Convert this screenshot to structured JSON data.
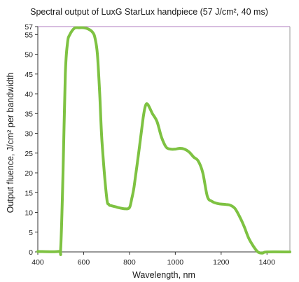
{
  "chart_data": {
    "type": "line",
    "title": "Spectral output of LuxG StarLux handpiece (57 J/cm², 40 ms)",
    "xlabel": "Wavelength, nm",
    "ylabel": "Output fluence, J/cm² per bandwidth",
    "xlim": [
      400,
      1500
    ],
    "ylim": [
      0,
      57
    ],
    "xticks": [
      400,
      600,
      800,
      1000,
      1200,
      1400
    ],
    "yticks": [
      0,
      5,
      10,
      15,
      20,
      25,
      30,
      35,
      40,
      45,
      50,
      55,
      57
    ],
    "grid": false,
    "series": [
      {
        "color": "#7ec242",
        "x": [
          400,
          490,
          500,
          510,
          520,
          530,
          540,
          560,
          580,
          600,
          620,
          640,
          650,
          660,
          670,
          680,
          700,
          710,
          720,
          740,
          760,
          780,
          800,
          810,
          820,
          840,
          860,
          870,
          880,
          900,
          920,
          940,
          960,
          980,
          1000,
          1020,
          1040,
          1060,
          1080,
          1100,
          1120,
          1140,
          1160,
          1180,
          1200,
          1220,
          1240,
          1260,
          1280,
          1300,
          1320,
          1340,
          1360,
          1380,
          1400,
          1500
        ],
        "y": [
          0.1,
          0.1,
          1,
          20,
          45,
          53,
          55,
          56.6,
          56.7,
          56.7,
          56.4,
          55.5,
          54,
          50,
          40,
          28,
          14,
          12,
          11.7,
          11.4,
          11.1,
          10.9,
          11.2,
          13.5,
          16.5,
          25,
          34,
          37,
          37.3,
          35,
          33,
          29,
          26.5,
          26,
          26,
          26.2,
          26,
          25.3,
          24,
          23,
          20,
          14,
          12.8,
          12.3,
          12.1,
          12,
          11.8,
          11,
          9,
          6.5,
          3.5,
          1.5,
          0,
          -0.3,
          0,
          0
        ]
      }
    ]
  }
}
